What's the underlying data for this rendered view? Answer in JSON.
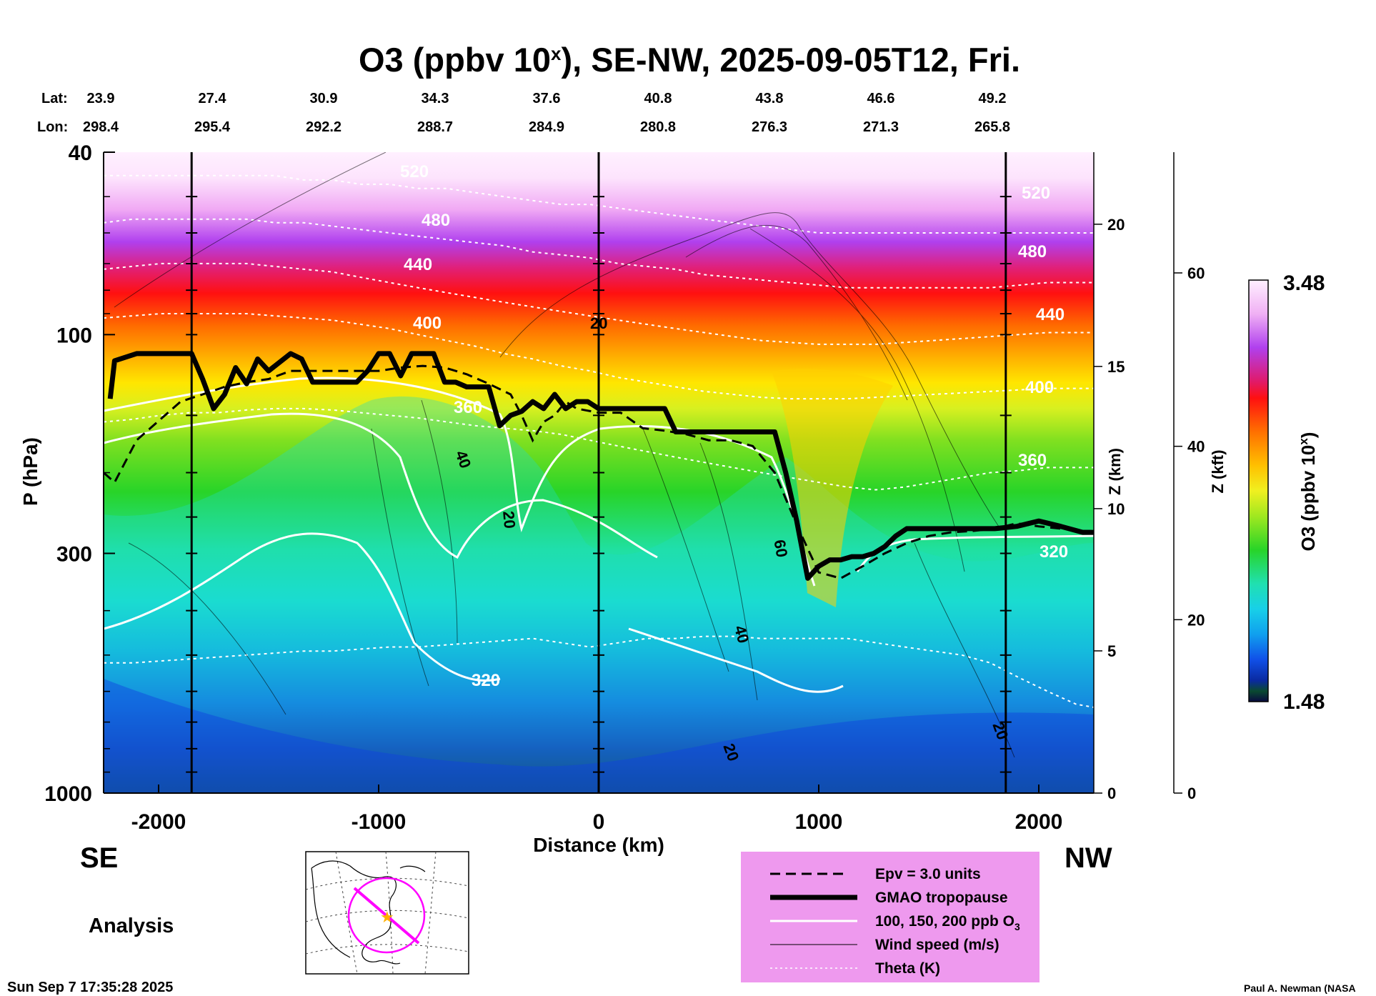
{
  "chart_data": {
    "type": "heatmap",
    "title_main": "O3 (ppbv 10",
    "title_sup": "x",
    "title_rest": "), SE-NW, 2025-09-05T12, Fri.",
    "xlabel": "Distance (km)",
    "ylabel": "P (hPa)",
    "zkm_label": "Z (km)",
    "zkft_label": "Z (kft)",
    "colorbar_label_main": "O3 (ppbv 10",
    "colorbar_label_sup": "x",
    "colorbar_label_close": ")",
    "colorbar_range": [
      1.48,
      3.48
    ],
    "colorbar_max_label": "3.48",
    "colorbar_min_label": "1.48",
    "xlim": [
      -2250,
      2250
    ],
    "ylim_hPa": [
      1000,
      40
    ],
    "x_ticks": [
      {
        "v": -2000,
        "label": "-2000"
      },
      {
        "v": -1000,
        "label": "-1000"
      },
      {
        "v": 0,
        "label": "0"
      },
      {
        "v": 1000,
        "label": "1000"
      },
      {
        "v": 2000,
        "label": "2000"
      }
    ],
    "y_ticks": [
      {
        "v": 40,
        "label": "40"
      },
      {
        "v": 100,
        "label": "100"
      },
      {
        "v": 300,
        "label": "300"
      },
      {
        "v": 1000,
        "label": "1000"
      }
    ],
    "z_km_ticks": [
      {
        "v": 0,
        "label": "0"
      },
      {
        "v": 5,
        "label": "5"
      },
      {
        "v": 10,
        "label": "10"
      },
      {
        "v": 15,
        "label": "15"
      },
      {
        "v": 20,
        "label": "20"
      }
    ],
    "z_kft_ticks": [
      {
        "v": 0,
        "label": "0"
      },
      {
        "v": 20,
        "label": "20"
      },
      {
        "v": 40,
        "label": "40"
      },
      {
        "v": 60,
        "label": "60"
      }
    ],
    "lat_label": "Lat:",
    "lon_label": "Lon:",
    "lat_lon": [
      {
        "lat": "23.9",
        "lon": "298.4"
      },
      {
        "lat": "27.4",
        "lon": "295.4"
      },
      {
        "lat": "30.9",
        "lon": "292.2"
      },
      {
        "lat": "34.3",
        "lon": "288.7"
      },
      {
        "lat": "37.6",
        "lon": "284.9"
      },
      {
        "lat": "40.8",
        "lon": "280.8"
      },
      {
        "lat": "43.8",
        "lon": "276.3"
      },
      {
        "lat": "46.6",
        "lon": "271.3"
      },
      {
        "lat": "49.2",
        "lon": "265.8"
      }
    ],
    "vertical_markers_km": [
      -1850,
      0,
      1850
    ],
    "tropopause": {
      "name": "GMAO tropopause",
      "x": [
        -2220,
        -2200,
        -2100,
        -1850,
        -1800,
        -1750,
        -1700,
        -1650,
        -1600,
        -1550,
        -1500,
        -1400,
        -1350,
        -1300,
        -1100,
        -1050,
        -1000,
        -950,
        -900,
        -850,
        -800,
        -750,
        -700,
        -650,
        -600,
        -500,
        -450,
        -400,
        -350,
        -300,
        -250,
        -200,
        -150,
        -100,
        -50,
        0,
        100,
        300,
        350,
        500,
        700,
        800,
        850,
        900,
        950,
        1000,
        1050,
        1100,
        1150,
        1200,
        1250,
        1300,
        1350,
        1400,
        1500,
        1600,
        1800,
        1900,
        2000,
        2100,
        2200,
        2250
      ],
      "p": [
        138,
        114,
        110,
        110,
        125,
        145,
        135,
        118,
        128,
        113,
        120,
        110,
        113,
        127,
        127,
        120,
        110,
        110,
        123,
        110,
        110,
        110,
        127,
        127,
        130,
        130,
        158,
        150,
        147,
        140,
        145,
        135,
        145,
        140,
        140,
        145,
        145,
        145,
        163,
        163,
        163,
        163,
        200,
        255,
        340,
        320,
        310,
        310,
        305,
        305,
        300,
        290,
        275,
        265,
        265,
        265,
        265,
        262,
        255,
        262,
        270,
        270
      ]
    },
    "epv": {
      "name": "Epv = 3.0 units",
      "x": [
        -2250,
        -2200,
        -2100,
        -1900,
        -1800,
        -1700,
        -1600,
        -1500,
        -1400,
        -1300,
        -1200,
        -1100,
        -1000,
        -900,
        -800,
        -700,
        -600,
        -500,
        -400,
        -350,
        -300,
        -250,
        -200,
        -150,
        -100,
        0,
        100,
        200,
        300,
        400,
        500,
        600,
        700,
        800,
        900,
        1000,
        1100,
        1200,
        1300,
        1400,
        1500,
        1600,
        1700,
        1800,
        1900,
        2000,
        2100,
        2200,
        2250
      ],
      "p": [
        200,
        210,
        170,
        140,
        135,
        130,
        127,
        125,
        120,
        120,
        120,
        120,
        120,
        118,
        117,
        118,
        122,
        128,
        135,
        150,
        170,
        155,
        150,
        140,
        145,
        148,
        148,
        160,
        162,
        165,
        170,
        170,
        175,
        200,
        260,
        330,
        340,
        320,
        300,
        285,
        275,
        270,
        268,
        265,
        258,
        262,
        265,
        268,
        268
      ]
    },
    "legend": {
      "epv": "Epv = 3.0 units",
      "tropopause": "GMAO tropopause",
      "ozone_main": "100, 150, 200 ppb O",
      "ozone_sub": "3",
      "wind": "Wind speed (m/s)",
      "theta": "Theta (K)"
    },
    "theta_levels": [
      {
        "level": "320",
        "p": [
          520,
          520,
          515,
          510,
          505,
          500,
          495,
          490,
          490,
          485,
          480,
          480,
          475,
          470,
          465,
          460,
          470,
          480,
          470,
          460,
          460,
          455,
          455,
          460,
          460,
          460,
          460,
          470,
          480,
          490,
          500,
          520,
          560,
          600,
          640,
          650
        ]
      },
      {
        "level": "360",
        "p": [
          155,
          153,
          150,
          148,
          148,
          146,
          145,
          145,
          146,
          148,
          150,
          152,
          155,
          158,
          160,
          162,
          165,
          170,
          175,
          180,
          185,
          190,
          195,
          200,
          205,
          210,
          215,
          218,
          215,
          210,
          205,
          200,
          198,
          195,
          195,
          195
        ]
      },
      {
        "level": "400",
        "p": [
          92,
          91,
          90,
          90,
          90,
          90,
          91,
          92,
          93,
          95,
          97,
          100,
          103,
          106,
          110,
          113,
          117,
          120,
          124,
          127,
          130,
          133,
          135,
          137,
          138,
          138,
          138,
          137,
          136,
          135,
          134,
          133,
          132,
          131,
          131,
          131
        ]
      },
      {
        "level": "440",
        "p": [
          72,
          71,
          70,
          70,
          70,
          70,
          71,
          72,
          73,
          75,
          77,
          79,
          81,
          83,
          85,
          87,
          89,
          91,
          93,
          95,
          97,
          99,
          101,
          103,
          104,
          105,
          105,
          105,
          104,
          103,
          102,
          101,
          100,
          99,
          99,
          99
        ]
      },
      {
        "level": "480",
        "p": [
          57,
          56,
          56,
          56,
          56,
          56,
          57,
          57,
          58,
          59,
          60,
          61,
          62,
          63,
          64,
          66,
          67,
          68,
          70,
          71,
          72,
          74,
          75,
          76,
          77,
          78,
          79,
          79,
          79,
          79,
          79,
          79,
          78,
          77,
          77,
          77
        ]
      },
      {
        "level": "520",
        "p": [
          45,
          45,
          45,
          45,
          45,
          45,
          45,
          46,
          46,
          47,
          47,
          48,
          48,
          49,
          50,
          51,
          52,
          52,
          53,
          54,
          55,
          56,
          57,
          58,
          59,
          60,
          60,
          60,
          60,
          60,
          60,
          60,
          60,
          60,
          60,
          60
        ]
      }
    ],
    "theta_x": [
      -2250,
      -2120,
      -1990,
      -1860,
      -1730,
      -1600,
      -1470,
      -1340,
      -1210,
      -1080,
      -950,
      -820,
      -690,
      -560,
      -430,
      -300,
      -170,
      -40,
      90,
      220,
      350,
      480,
      610,
      740,
      870,
      1000,
      1130,
      1260,
      1390,
      1520,
      1650,
      1780,
      1910,
      2040,
      2170,
      2250
    ],
    "wind_label_values": [
      "20",
      "40",
      "20",
      "60",
      "40",
      "20",
      "20"
    ],
    "theta_label_values": [
      "520",
      "480",
      "440",
      "400",
      "360",
      "320",
      "320",
      "520",
      "480",
      "440",
      "400",
      "360"
    ],
    "ozone_field_description_levels": [
      "100",
      "150",
      "200"
    ],
    "analysis_label": "Analysis",
    "left_region": "SE",
    "right_region": "NW",
    "timestamp": "Sun Sep  7 17:35:28 2025",
    "credit": "Paul A. Newman (NASA",
    "map_path_color": "#ff00ff",
    "map_center_color": "#ffb000"
  },
  "colors": {
    "legend_bg": "#ee99ee",
    "theta_line": "#ffffff",
    "contour_white": "#ffffff"
  }
}
